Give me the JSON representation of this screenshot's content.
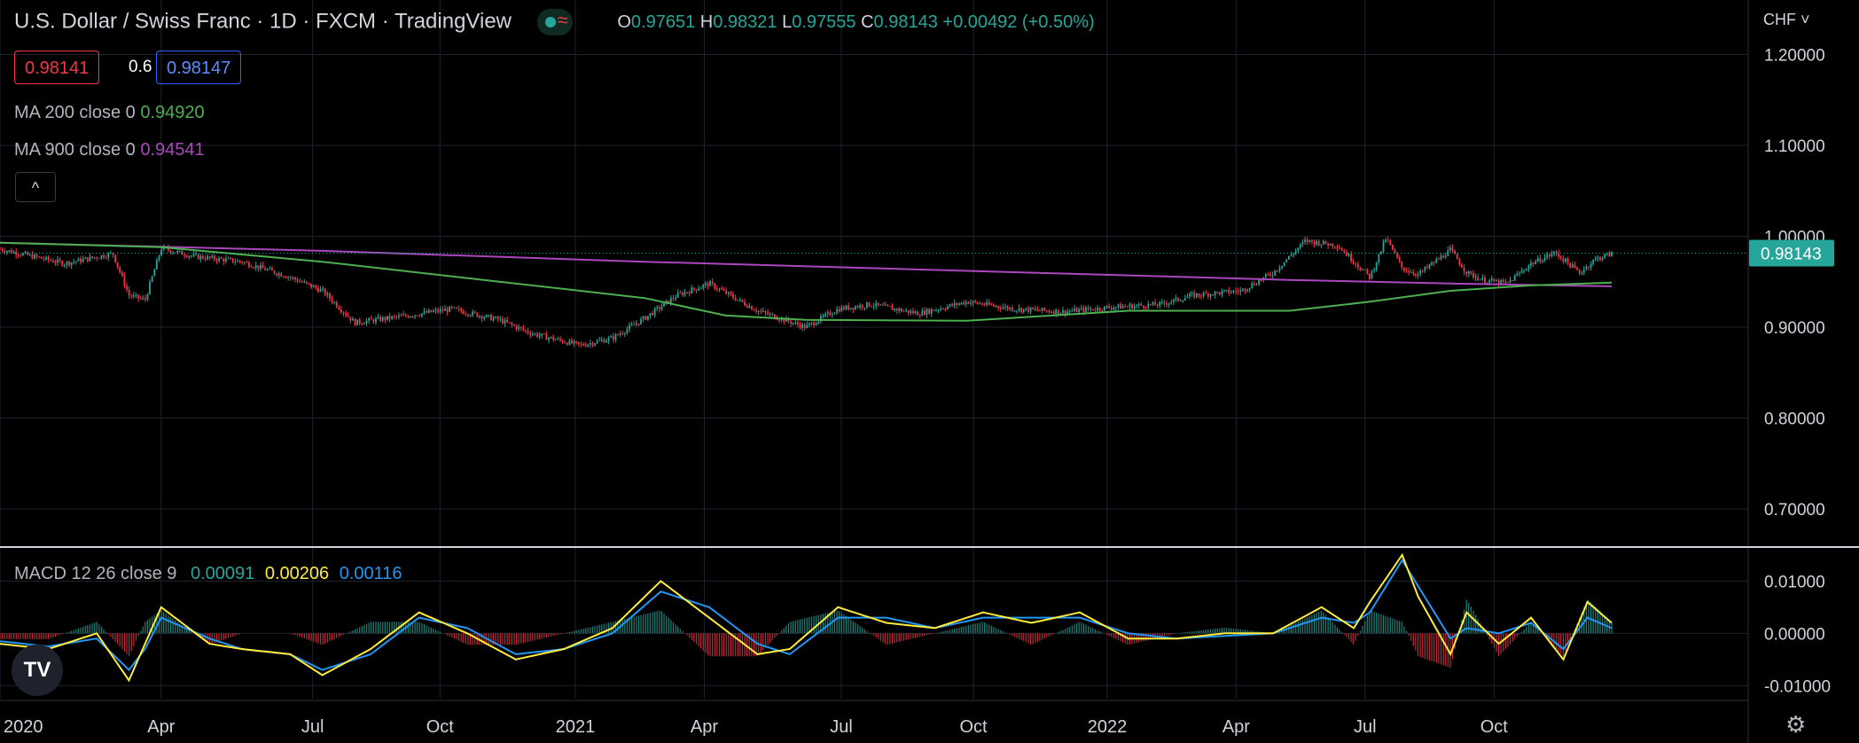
{
  "header": {
    "symbol_title": "U.S. Dollar / Swiss Franc · 1D · FXCM · TradingView",
    "market_badge": "≈",
    "ohlc": {
      "o_label": "O",
      "o": "0.97651",
      "h_label": "H",
      "h": "0.98321",
      "l_label": "L",
      "l": "0.97555",
      "c_label": "C",
      "c": "0.98143",
      "change": "+0.00492 (+0.50%)"
    },
    "bid": "0.98141",
    "spread": "0.6",
    "ask": "0.98147",
    "currency_label": "CHF ˅",
    "collapse_icon": "^"
  },
  "indicators": {
    "ma200": {
      "label": "MA 200 close 0",
      "value": "0.94920"
    },
    "ma900": {
      "label": "MA 900 close 0",
      "value": "0.94541"
    },
    "macd": {
      "label": "MACD 12 26 close 9",
      "hist": "0.00091",
      "macd": "0.00206",
      "signal": "0.00116"
    }
  },
  "colors": {
    "background": "#000000",
    "up": "#26a69a",
    "down": "#f23645",
    "ma200": "#4caf50",
    "ma900": "#ab47bc",
    "macd_line": "#ffeb3b",
    "signal_line": "#2196f3",
    "grid": "#1e222d",
    "axis_text": "#d1d4dc"
  },
  "chart_data": [
    {
      "type": "candlestick",
      "title": "U.S. Dollar / Swiss Franc · 1D · FXCM · TradingView",
      "price_axis": {
        "ticks": [
          "1.20000",
          "1.10000",
          "1.00000",
          "0.90000",
          "0.80000",
          "0.70000"
        ],
        "ylim": [
          0.66,
          1.26
        ]
      },
      "last_price_label": "0.98143",
      "x_ticks": [
        "2020",
        "Apr",
        "Jul",
        "Oct",
        "2021",
        "Apr",
        "Jul",
        "Oct",
        "2022",
        "Apr",
        "Jul",
        "Oct"
      ],
      "close_path": {
        "x": [
          0,
          0.04,
          0.07,
          0.08,
          0.09,
          0.1,
          0.12,
          0.15,
          0.18,
          0.2,
          0.22,
          0.25,
          0.28,
          0.31,
          0.33,
          0.36,
          0.38,
          0.4,
          0.42,
          0.44,
          0.47,
          0.5,
          0.52,
          0.54,
          0.57,
          0.6,
          0.63,
          0.66,
          0.69,
          0.72,
          0.74,
          0.77,
          0.79,
          0.81,
          0.83,
          0.85,
          0.86,
          0.87,
          0.88,
          0.9,
          0.91,
          0.92,
          0.935,
          0.95,
          0.965,
          0.98,
          0.99,
          1.0
        ],
        "close": [
          0.986,
          0.97,
          0.981,
          0.935,
          0.93,
          0.987,
          0.978,
          0.972,
          0.955,
          0.94,
          0.905,
          0.912,
          0.92,
          0.908,
          0.893,
          0.88,
          0.888,
          0.91,
          0.935,
          0.948,
          0.918,
          0.9,
          0.92,
          0.925,
          0.915,
          0.928,
          0.92,
          0.917,
          0.922,
          0.925,
          0.935,
          0.94,
          0.96,
          0.995,
          0.99,
          0.955,
          0.998,
          0.965,
          0.958,
          0.985,
          0.96,
          0.952,
          0.948,
          0.97,
          0.982,
          0.96,
          0.975,
          0.981
        ]
      },
      "series": [
        {
          "name": "MA 200 close 0",
          "x": [
            0,
            0.1,
            0.2,
            0.3,
            0.4,
            0.45,
            0.5,
            0.6,
            0.7,
            0.8,
            0.85,
            0.9,
            0.95,
            1.0
          ],
          "values": [
            0.993,
            0.988,
            0.972,
            0.952,
            0.932,
            0.913,
            0.908,
            0.907,
            0.918,
            0.918,
            0.928,
            0.94,
            0.946,
            0.949
          ]
        },
        {
          "name": "MA 900 close 0",
          "x": [
            0,
            0.2,
            0.4,
            0.6,
            0.8,
            0.9,
            1.0
          ],
          "values": [
            0.993,
            0.984,
            0.972,
            0.962,
            0.952,
            0.948,
            0.945
          ]
        }
      ]
    },
    {
      "type": "line",
      "title": "MACD 12 26 close 9",
      "y_axis": {
        "ticks": [
          "0.01000",
          "0.00000",
          "-0.01000"
        ],
        "ylim": [
          -0.0125,
          0.016
        ]
      },
      "x": [
        0,
        0.03,
        0.06,
        0.08,
        0.09,
        0.1,
        0.13,
        0.15,
        0.18,
        0.2,
        0.23,
        0.26,
        0.29,
        0.32,
        0.35,
        0.38,
        0.41,
        0.44,
        0.47,
        0.49,
        0.52,
        0.55,
        0.58,
        0.61,
        0.64,
        0.67,
        0.7,
        0.73,
        0.76,
        0.79,
        0.82,
        0.84,
        0.85,
        0.87,
        0.88,
        0.9,
        0.91,
        0.93,
        0.95,
        0.97,
        0.985,
        1.0
      ],
      "series": [
        {
          "name": "MACD",
          "values": [
            -0.002,
            -0.003,
            0.0,
            -0.009,
            -0.002,
            0.005,
            -0.002,
            -0.003,
            -0.004,
            -0.008,
            -0.003,
            0.004,
            0.0,
            -0.005,
            -0.003,
            0.001,
            0.01,
            0.003,
            -0.004,
            -0.003,
            0.005,
            0.002,
            0.001,
            0.004,
            0.002,
            0.004,
            -0.001,
            -0.001,
            0.0,
            0.0,
            0.005,
            0.001,
            0.006,
            0.015,
            0.007,
            -0.004,
            0.004,
            -0.002,
            0.003,
            -0.005,
            0.006,
            0.002
          ]
        },
        {
          "name": "Signal",
          "values": [
            -0.0015,
            -0.0025,
            -0.001,
            -0.007,
            -0.003,
            0.003,
            -0.001,
            -0.003,
            -0.004,
            -0.007,
            -0.004,
            0.003,
            0.001,
            -0.004,
            -0.003,
            0.0,
            0.008,
            0.005,
            -0.002,
            -0.004,
            0.003,
            0.003,
            0.001,
            0.003,
            0.003,
            0.003,
            0.0,
            -0.001,
            -0.0005,
            0.0,
            0.003,
            0.002,
            0.004,
            0.014,
            0.009,
            -0.001,
            0.001,
            0.0,
            0.002,
            -0.003,
            0.003,
            0.001
          ]
        }
      ]
    }
  ]
}
